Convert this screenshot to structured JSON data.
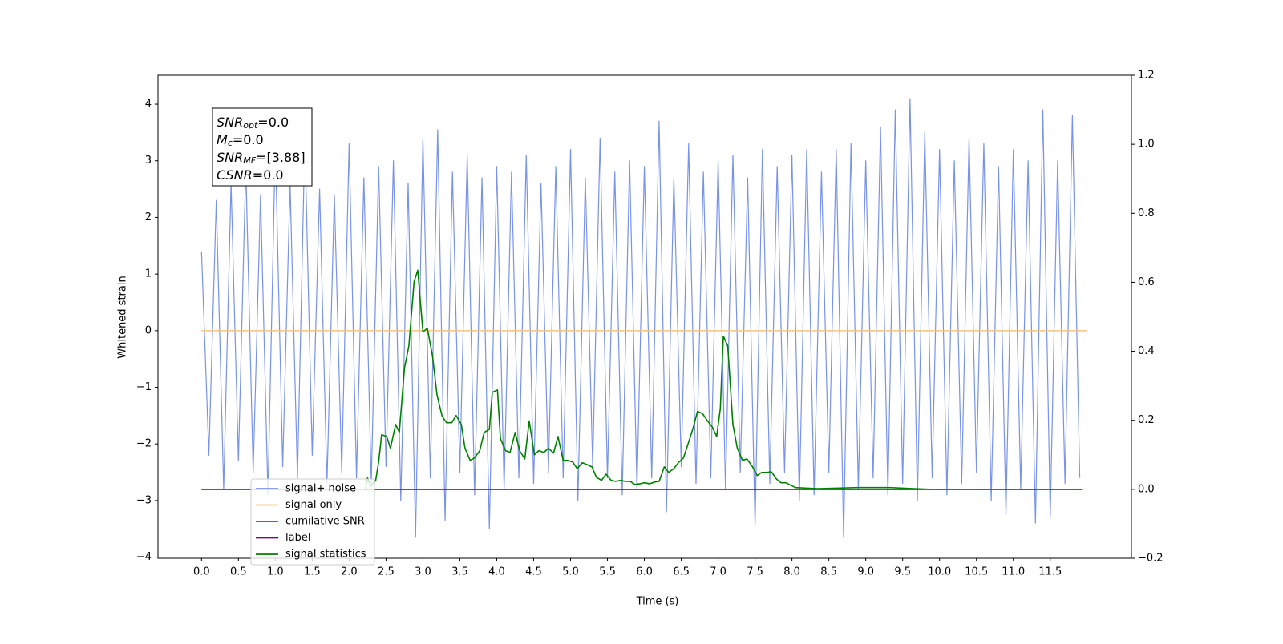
{
  "chart_data": {
    "type": "line",
    "x_label": "Time (s)",
    "y_label": "Whitened strain",
    "xlim": [
      -0.59,
      12.6
    ],
    "ylim": [
      -4.02,
      4.51
    ],
    "y2lim": [
      -0.2,
      1.2
    ],
    "xticks": [
      {
        "value": 0,
        "label": "0.0"
      },
      0.5,
      {
        "value": 1,
        "label": "1.0"
      },
      1.5,
      {
        "value": 2,
        "label": "2.0"
      },
      2.5,
      {
        "value": 3,
        "label": "3.0"
      },
      3.5,
      {
        "value": 4,
        "label": "4.0"
      },
      4.5,
      {
        "value": 5,
        "label": "5.0"
      },
      5.5,
      {
        "value": 6,
        "label": "6.0"
      },
      6.5,
      {
        "value": 7,
        "label": "7.0"
      },
      7.5,
      {
        "value": 8,
        "label": "8.0"
      },
      8.5,
      {
        "value": 9,
        "label": "9.0"
      },
      9.5,
      {
        "value": 10,
        "label": "10.0"
      },
      10.5,
      {
        "value": 11,
        "label": "11.0"
      },
      11.5
    ],
    "yticks": [
      {
        "value": -4,
        "label": "−4"
      },
      {
        "value": -3,
        "label": "−3"
      },
      {
        "value": -2,
        "label": "−2"
      },
      {
        "value": -1,
        "label": "−1"
      },
      0,
      1,
      2,
      3,
      4
    ],
    "y2ticks": [
      {
        "value": -0.2,
        "label": "−0.2"
      },
      {
        "value": 0,
        "label": "0.0"
      },
      0.2,
      0.4,
      0.6,
      0.8,
      {
        "value": 1,
        "label": "1.0"
      },
      1.2
    ],
    "grid": false,
    "legend": "lower left",
    "annotation": [
      {
        "main": "SNR",
        "sub": "opt",
        "rest": "=0.0"
      },
      {
        "main": "M",
        "sub": "c",
        "rest": "=0.0"
      },
      {
        "main": "SNR",
        "sub": "MF",
        "rest": "=[3.88]"
      },
      {
        "main": "CSNR",
        "rest": "=0.0"
      }
    ],
    "series": [
      {
        "name": "signal+ noise",
        "color": "#7893e8",
        "width": 1.2,
        "x": [
          0.0,
          0.1,
          0.2,
          0.3,
          0.4,
          0.5,
          0.6,
          0.7,
          0.8,
          0.9,
          1.0,
          1.1,
          1.2,
          1.3,
          1.4,
          1.5,
          1.6,
          1.7,
          1.8,
          1.9,
          2.0,
          2.1,
          2.2,
          2.3,
          2.4,
          2.5,
          2.6,
          2.7,
          2.8,
          2.9,
          3.0,
          3.1,
          3.2,
          3.3,
          3.4,
          3.5,
          3.6,
          3.7,
          3.8,
          3.9,
          4.0,
          4.1,
          4.2,
          4.3,
          4.4,
          4.5,
          4.6,
          4.7,
          4.8,
          4.9,
          5.0,
          5.1,
          5.2,
          5.3,
          5.4,
          5.5,
          5.6,
          5.7,
          5.8,
          5.9,
          6.0,
          6.1,
          6.2,
          6.3,
          6.4,
          6.5,
          6.6,
          6.7,
          6.8,
          6.9,
          7.0,
          7.1,
          7.2,
          7.3,
          7.4,
          7.5,
          7.6,
          7.7,
          7.8,
          7.9,
          8.0,
          8.1,
          8.2,
          8.3,
          8.4,
          8.5,
          8.6,
          8.7,
          8.8,
          8.9,
          9.0,
          9.1,
          9.2,
          9.3,
          9.4,
          9.5,
          9.6,
          9.7,
          9.8,
          9.9,
          10.0,
          10.1,
          10.2,
          10.3,
          10.4,
          10.5,
          10.6,
          10.7,
          10.8,
          10.9,
          11.0,
          11.1,
          11.2,
          11.3,
          11.4,
          11.5,
          11.6,
          11.7,
          11.8,
          11.9
        ],
        "values": [
          1.4,
          -2.2,
          2.3,
          -2.8,
          2.6,
          -2.3,
          2.9,
          -2.5,
          2.4,
          -2.9,
          3.3,
          -2.4,
          2.6,
          -2.6,
          3.4,
          -2.2,
          2.5,
          -2.7,
          2.4,
          -2.5,
          3.3,
          -2.6,
          2.7,
          -2.7,
          2.9,
          -2.4,
          3.0,
          -3.0,
          2.6,
          -3.65,
          3.4,
          -2.6,
          3.55,
          -3.35,
          2.8,
          -2.5,
          3.1,
          -2.9,
          2.7,
          -3.5,
          2.9,
          -2.8,
          2.8,
          -2.6,
          3.1,
          -2.7,
          2.6,
          -2.5,
          2.9,
          -2.6,
          3.2,
          -3.0,
          2.7,
          -2.4,
          3.4,
          -2.6,
          2.8,
          -2.9,
          3.0,
          -2.8,
          2.9,
          -2.6,
          3.7,
          -3.2,
          2.7,
          -2.4,
          3.3,
          -2.7,
          2.8,
          -2.6,
          3.0,
          -2.8,
          3.1,
          -2.5,
          2.7,
          -3.45,
          3.2,
          -2.7,
          2.9,
          -2.5,
          3.1,
          -3.0,
          3.2,
          -2.9,
          2.8,
          -2.5,
          3.2,
          -3.65,
          3.3,
          -2.8,
          3.0,
          -2.6,
          3.6,
          -2.9,
          3.9,
          -2.7,
          4.1,
          -3.0,
          3.5,
          -2.6,
          3.2,
          -2.9,
          3.0,
          -2.7,
          3.4,
          -2.5,
          3.3,
          -3.0,
          2.9,
          -3.25,
          3.2,
          -2.8,
          3.0,
          -3.4,
          3.9,
          -3.3,
          3.0,
          -2.7,
          3.8,
          -2.6
        ]
      },
      {
        "name": "signal only",
        "color": "#f7c27c",
        "width": 1.5,
        "x": [
          0.0,
          11.99
        ],
        "values": [
          0,
          0
        ]
      },
      {
        "name": "cumilative SNR",
        "color": "#e8141a",
        "width": 1.5,
        "axis": "y2",
        "x": [
          0.0,
          11.93
        ],
        "values": [
          0,
          0
        ]
      },
      {
        "name": "label",
        "color": "#800080",
        "width": 1.8,
        "axis": "y2",
        "x": [
          0.0,
          11.93
        ],
        "values": [
          0,
          0
        ]
      },
      {
        "name": "signal statistics",
        "color": "#008000",
        "width": 1.6,
        "axis": "y2",
        "x": [
          0.0,
          2.22,
          2.25,
          2.29,
          2.36,
          2.4,
          2.44,
          2.51,
          2.56,
          2.63,
          2.68,
          2.75,
          2.81,
          2.88,
          2.93,
          3.0,
          3.06,
          3.13,
          3.19,
          3.26,
          3.32,
          3.39,
          3.45,
          3.52,
          3.57,
          3.64,
          3.7,
          3.77,
          3.83,
          3.9,
          3.94,
          4.01,
          4.05,
          4.12,
          4.18,
          4.25,
          4.31,
          4.38,
          4.44,
          4.51,
          4.57,
          4.64,
          4.7,
          4.77,
          4.83,
          4.9,
          4.96,
          5.03,
          5.09,
          5.16,
          5.22,
          5.29,
          5.35,
          5.42,
          5.48,
          5.55,
          5.61,
          5.68,
          5.74,
          5.81,
          5.87,
          5.94,
          6.0,
          6.07,
          6.14,
          6.2,
          6.27,
          6.33,
          6.4,
          6.46,
          6.53,
          6.59,
          6.66,
          6.72,
          6.79,
          6.85,
          6.92,
          6.98,
          7.03,
          7.07,
          7.13,
          7.2,
          7.26,
          7.33,
          7.39,
          7.46,
          7.53,
          7.59,
          7.66,
          7.72,
          7.79,
          7.85,
          7.92,
          7.98,
          8.05,
          8.35,
          8.89,
          9.33,
          9.65,
          9.87,
          11.93
        ],
        "values": [
          0.0,
          0.0,
          0.033,
          0.009,
          0.026,
          0.079,
          0.158,
          0.153,
          0.119,
          0.188,
          0.165,
          0.351,
          0.416,
          0.602,
          0.635,
          0.456,
          0.467,
          0.386,
          0.274,
          0.212,
          0.193,
          0.193,
          0.214,
          0.188,
          0.119,
          0.084,
          0.091,
          0.112,
          0.165,
          0.174,
          0.281,
          0.288,
          0.147,
          0.112,
          0.107,
          0.165,
          0.112,
          0.088,
          0.198,
          0.1,
          0.112,
          0.107,
          0.119,
          0.105,
          0.153,
          0.084,
          0.084,
          0.079,
          0.06,
          0.077,
          0.072,
          0.065,
          0.035,
          0.026,
          0.044,
          0.026,
          0.023,
          0.026,
          0.023,
          0.023,
          0.014,
          0.016,
          0.019,
          0.016,
          0.021,
          0.023,
          0.065,
          0.049,
          0.06,
          0.077,
          0.091,
          0.13,
          0.177,
          0.226,
          0.219,
          0.2,
          0.181,
          0.153,
          0.235,
          0.444,
          0.416,
          0.188,
          0.119,
          0.084,
          0.088,
          0.067,
          0.04,
          0.049,
          0.049,
          0.051,
          0.03,
          0.019,
          0.019,
          0.012,
          0.005,
          0.002,
          0.005,
          0.005,
          0.002,
          0.0,
          0.0
        ]
      }
    ]
  }
}
